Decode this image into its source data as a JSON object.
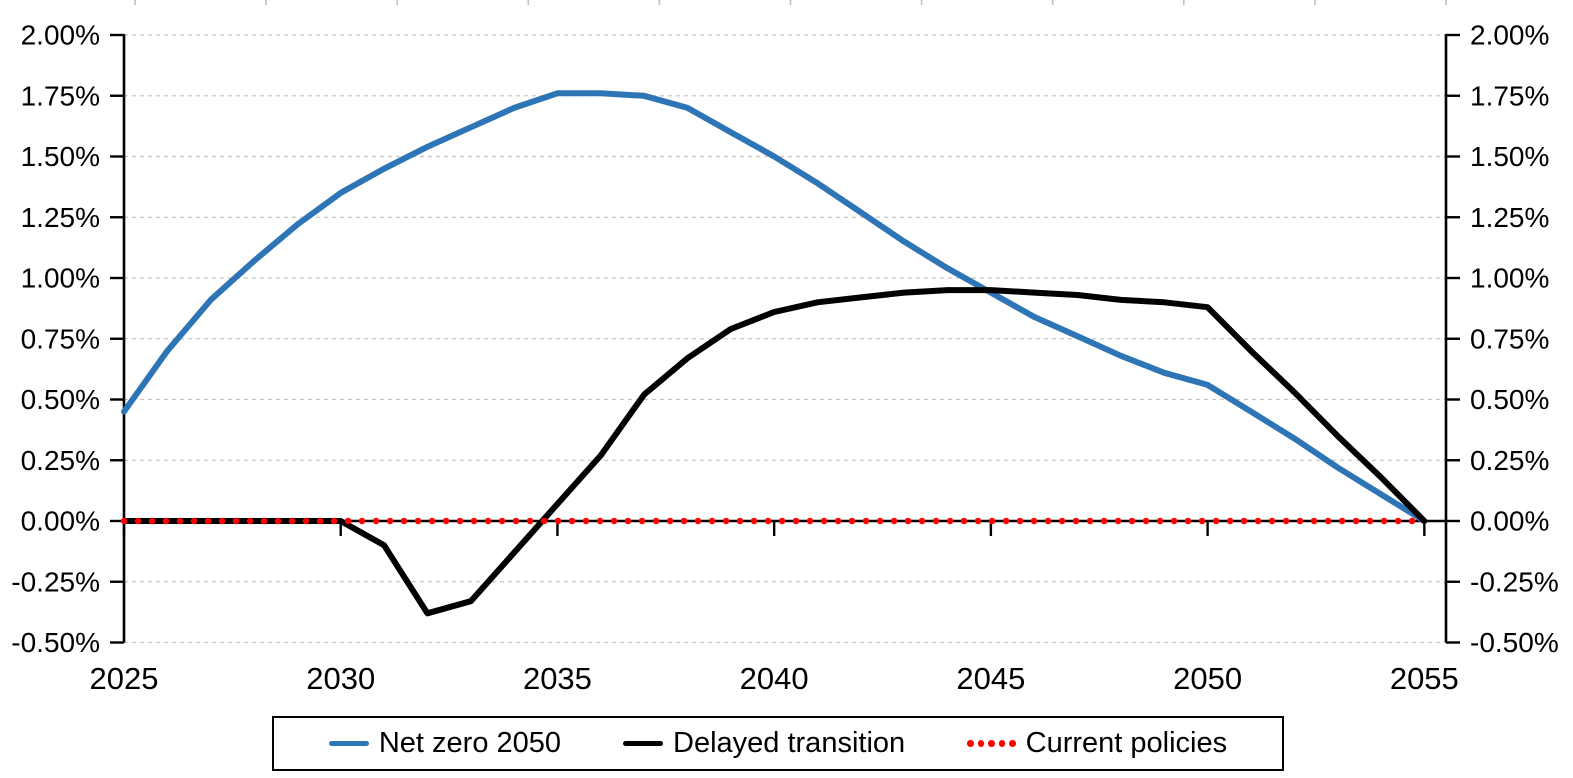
{
  "chart_data": {
    "type": "line",
    "title": "",
    "xlabel": "",
    "ylabel": "",
    "x": [
      2025,
      2026,
      2027,
      2028,
      2029,
      2030,
      2031,
      2032,
      2033,
      2034,
      2035,
      2036,
      2037,
      2038,
      2039,
      2040,
      2041,
      2042,
      2043,
      2044,
      2045,
      2046,
      2047,
      2048,
      2049,
      2050,
      2051,
      2052,
      2053,
      2054,
      2055
    ],
    "series": [
      {
        "name": "Net zero 2050",
        "color": "#2E75B6",
        "style": "solid",
        "values": [
          0.45,
          0.7,
          0.91,
          1.07,
          1.22,
          1.35,
          1.45,
          1.54,
          1.62,
          1.7,
          1.76,
          1.76,
          1.75,
          1.7,
          1.6,
          1.5,
          1.39,
          1.27,
          1.15,
          1.04,
          0.94,
          0.84,
          0.76,
          0.68,
          0.61,
          0.56,
          0.45,
          0.34,
          0.22,
          0.11,
          0.0
        ]
      },
      {
        "name": "Delayed transition",
        "color": "#000000",
        "style": "solid",
        "values": [
          0.0,
          0.0,
          0.0,
          0.0,
          0.0,
          0.0,
          -0.1,
          -0.38,
          -0.33,
          -0.13,
          0.07,
          0.27,
          0.52,
          0.67,
          0.79,
          0.86,
          0.9,
          0.92,
          0.94,
          0.95,
          0.95,
          0.94,
          0.93,
          0.91,
          0.9,
          0.88,
          0.7,
          0.53,
          0.35,
          0.18,
          0.0
        ]
      },
      {
        "name": "Current policies",
        "color": "#FF0000",
        "style": "dotted",
        "values": [
          0.0,
          0.0,
          0.0,
          0.0,
          0.0,
          0.0,
          0.0,
          0.0,
          0.0,
          0.0,
          0.0,
          0.0,
          0.0,
          0.0,
          0.0,
          0.0,
          0.0,
          0.0,
          0.0,
          0.0,
          0.0,
          0.0,
          0.0,
          0.0,
          0.0,
          0.0,
          0.0,
          0.0,
          0.0,
          0.0,
          0.0
        ]
      }
    ],
    "ylim": [
      -0.5,
      2.0
    ],
    "y_tick_step": 0.25,
    "y_tick_labels": [
      "2.00%",
      "1.75%",
      "1.50%",
      "1.25%",
      "1.00%",
      "0.75%",
      "0.50%",
      "0.25%",
      "0.00%",
      "-0.25%",
      "-0.50%"
    ],
    "x_tick_labels": [
      "2025",
      "2030",
      "2035",
      "2040",
      "2045",
      "2050",
      "2055"
    ],
    "y_axis_sides": [
      "left",
      "right"
    ],
    "grid": true,
    "gridline_color": "#C6C6C6",
    "axis_color": "#000000",
    "legend_position": "bottom"
  }
}
